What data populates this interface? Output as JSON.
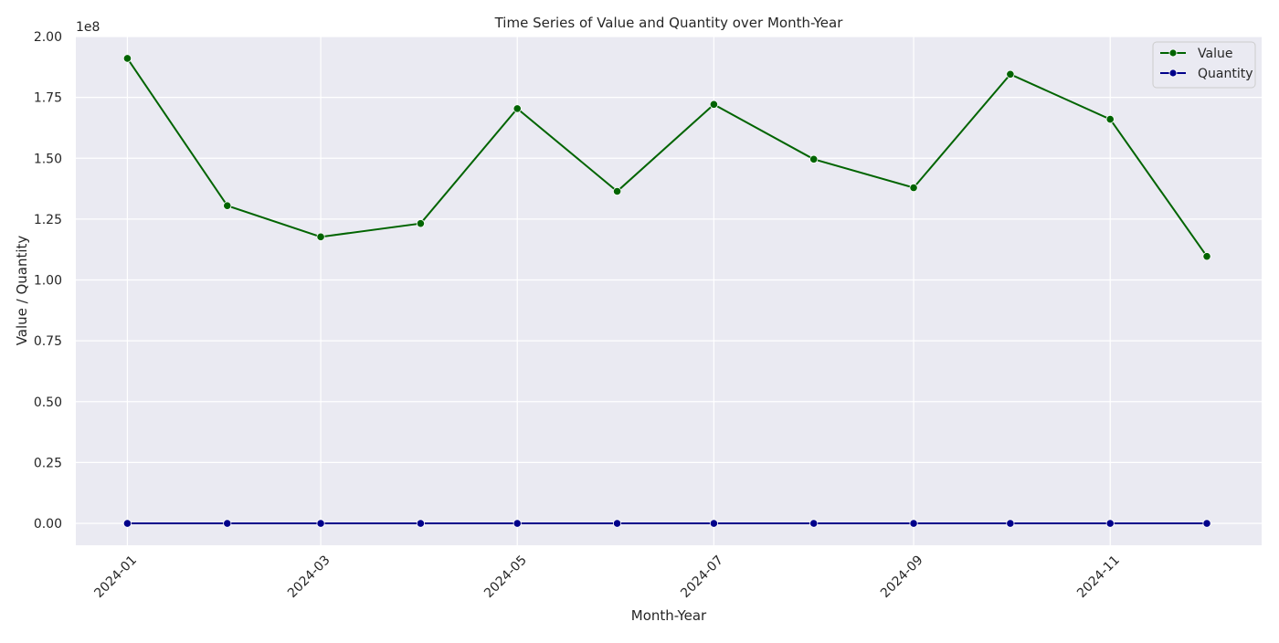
{
  "chart_data": {
    "type": "line",
    "title": "Time Series of Value and Quantity over Month-Year",
    "xlabel": "Month-Year",
    "ylabel": "Value / Quantity",
    "y_offset_label": "1e8",
    "x": [
      "2024-01-01",
      "2024-02-01",
      "2024-03-01",
      "2024-04-01",
      "2024-05-01",
      "2024-06-01",
      "2024-07-01",
      "2024-08-01",
      "2024-09-01",
      "2024-10-01",
      "2024-11-01",
      "2024-12-01"
    ],
    "x_tick_labels": [
      "2024-01",
      "2024-03",
      "2024-05",
      "2024-07",
      "2024-09",
      "2024-11"
    ],
    "y_tick_labels": [
      "0.00",
      "0.25",
      "0.50",
      "0.75",
      "1.00",
      "1.25",
      "1.50",
      "1.75",
      "2.00"
    ],
    "ylim": [
      -9000000,
      200000000
    ],
    "grid": true,
    "legend_position": "top-right",
    "series": [
      {
        "name": "Value",
        "color": "#006400",
        "values": [
          191000000,
          130500000,
          117700000,
          123200000,
          170400000,
          136400000,
          172100000,
          149600000,
          137900000,
          184500000,
          166000000,
          109700000
        ]
      },
      {
        "name": "Quantity",
        "color": "#00008b",
        "values": [
          0,
          0,
          0,
          0,
          0,
          0,
          0,
          0,
          0,
          0,
          0,
          0
        ]
      }
    ]
  }
}
